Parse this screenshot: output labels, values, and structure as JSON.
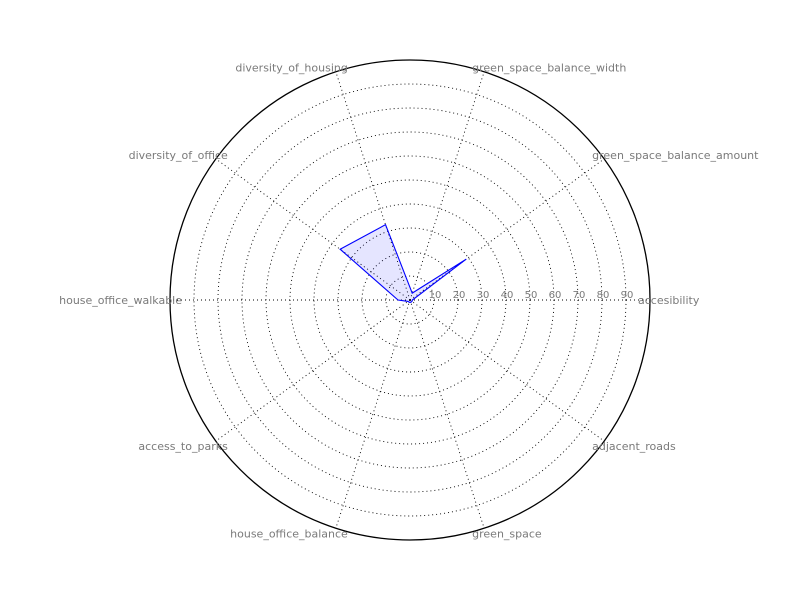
{
  "chart_data": {
    "type": "radar",
    "title": "",
    "grid": true,
    "rlim": [
      0,
      100
    ],
    "rticks": [
      10,
      20,
      30,
      40,
      50,
      60,
      70,
      80,
      90
    ],
    "rtick_labels": [
      "10",
      "20",
      "30",
      "40",
      "50",
      "60",
      "70",
      "80",
      "90"
    ],
    "categories": [
      "accesibility",
      "green_space_balance_amount",
      "green_space_balance_width",
      "diversity_of_housing",
      "diversity_of_office",
      "house_office_walkable",
      "access_to_parks",
      "house_office_balance",
      "green_space",
      "adjacent_roads"
    ],
    "series": [
      {
        "values": [
          1,
          29,
          3,
          33,
          36,
          5,
          1,
          1,
          1,
          1
        ],
        "line_color": "#0000ff",
        "fill_color": "#0000ff"
      }
    ]
  }
}
